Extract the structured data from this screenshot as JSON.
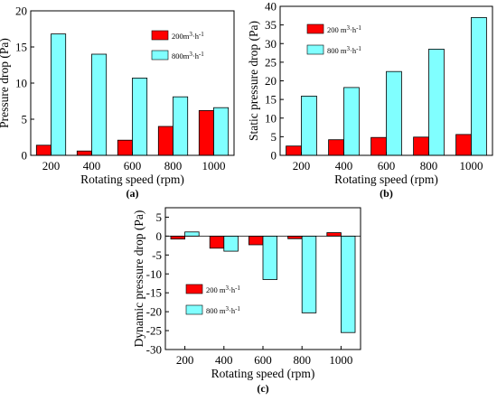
{
  "colors": {
    "series_200": "#ff0000",
    "series_800": "#80ffff",
    "axis": "#000000"
  },
  "chart_data": [
    {
      "panel_label": "(a)",
      "type": "bar",
      "categories": [
        "200",
        "400",
        "600",
        "800",
        "1000"
      ],
      "series": [
        {
          "name": "200m³·h⁻¹",
          "values": [
            1.4,
            0.6,
            2.1,
            4.0,
            6.2
          ]
        },
        {
          "name": "800m³·h⁻¹",
          "values": [
            16.8,
            14.0,
            10.7,
            8.1,
            6.6
          ]
        }
      ],
      "xlabel": "Rotating speed (rpm)",
      "ylabel": "Pressure drop (Pa)",
      "ylim": [
        0,
        20
      ],
      "yticks": [
        0,
        5,
        10,
        15,
        20
      ],
      "legend_position": "top-right"
    },
    {
      "panel_label": "(b)",
      "type": "bar",
      "categories": [
        "200",
        "400",
        "600",
        "800",
        "1000"
      ],
      "series": [
        {
          "name": "200 m³·h⁻¹",
          "values": [
            2.5,
            4.2,
            4.8,
            4.9,
            5.6
          ]
        },
        {
          "name": "800 m³·h⁻¹",
          "values": [
            15.9,
            18.2,
            22.5,
            28.5,
            37.0
          ]
        }
      ],
      "xlabel": "Rotating speed (rpm)",
      "ylabel": "Static pressure drop (Pa)",
      "ylim": [
        0,
        40
      ],
      "yticks": [
        0,
        5,
        10,
        15,
        20,
        25,
        30,
        35,
        40
      ],
      "legend_position": "top-left"
    },
    {
      "panel_label": "(c)",
      "type": "bar",
      "categories": [
        "200",
        "400",
        "600",
        "800",
        "1000"
      ],
      "series": [
        {
          "name": "200 m³·h⁻¹",
          "values": [
            -0.8,
            -3.2,
            -2.3,
            -0.7,
            0.9
          ]
        },
        {
          "name": "800 m³·h⁻¹",
          "values": [
            1.1,
            -4.0,
            -11.5,
            -20.3,
            -25.5
          ]
        }
      ],
      "xlabel": "Rotating speed (rpm)",
      "ylabel": "Dynamic pressure drop (Pa)",
      "ylim": [
        -30,
        7.5
      ],
      "yticks": [
        -30,
        -25,
        -20,
        -15,
        -10,
        -5,
        0,
        5
      ],
      "legend_position": "center-left"
    }
  ]
}
